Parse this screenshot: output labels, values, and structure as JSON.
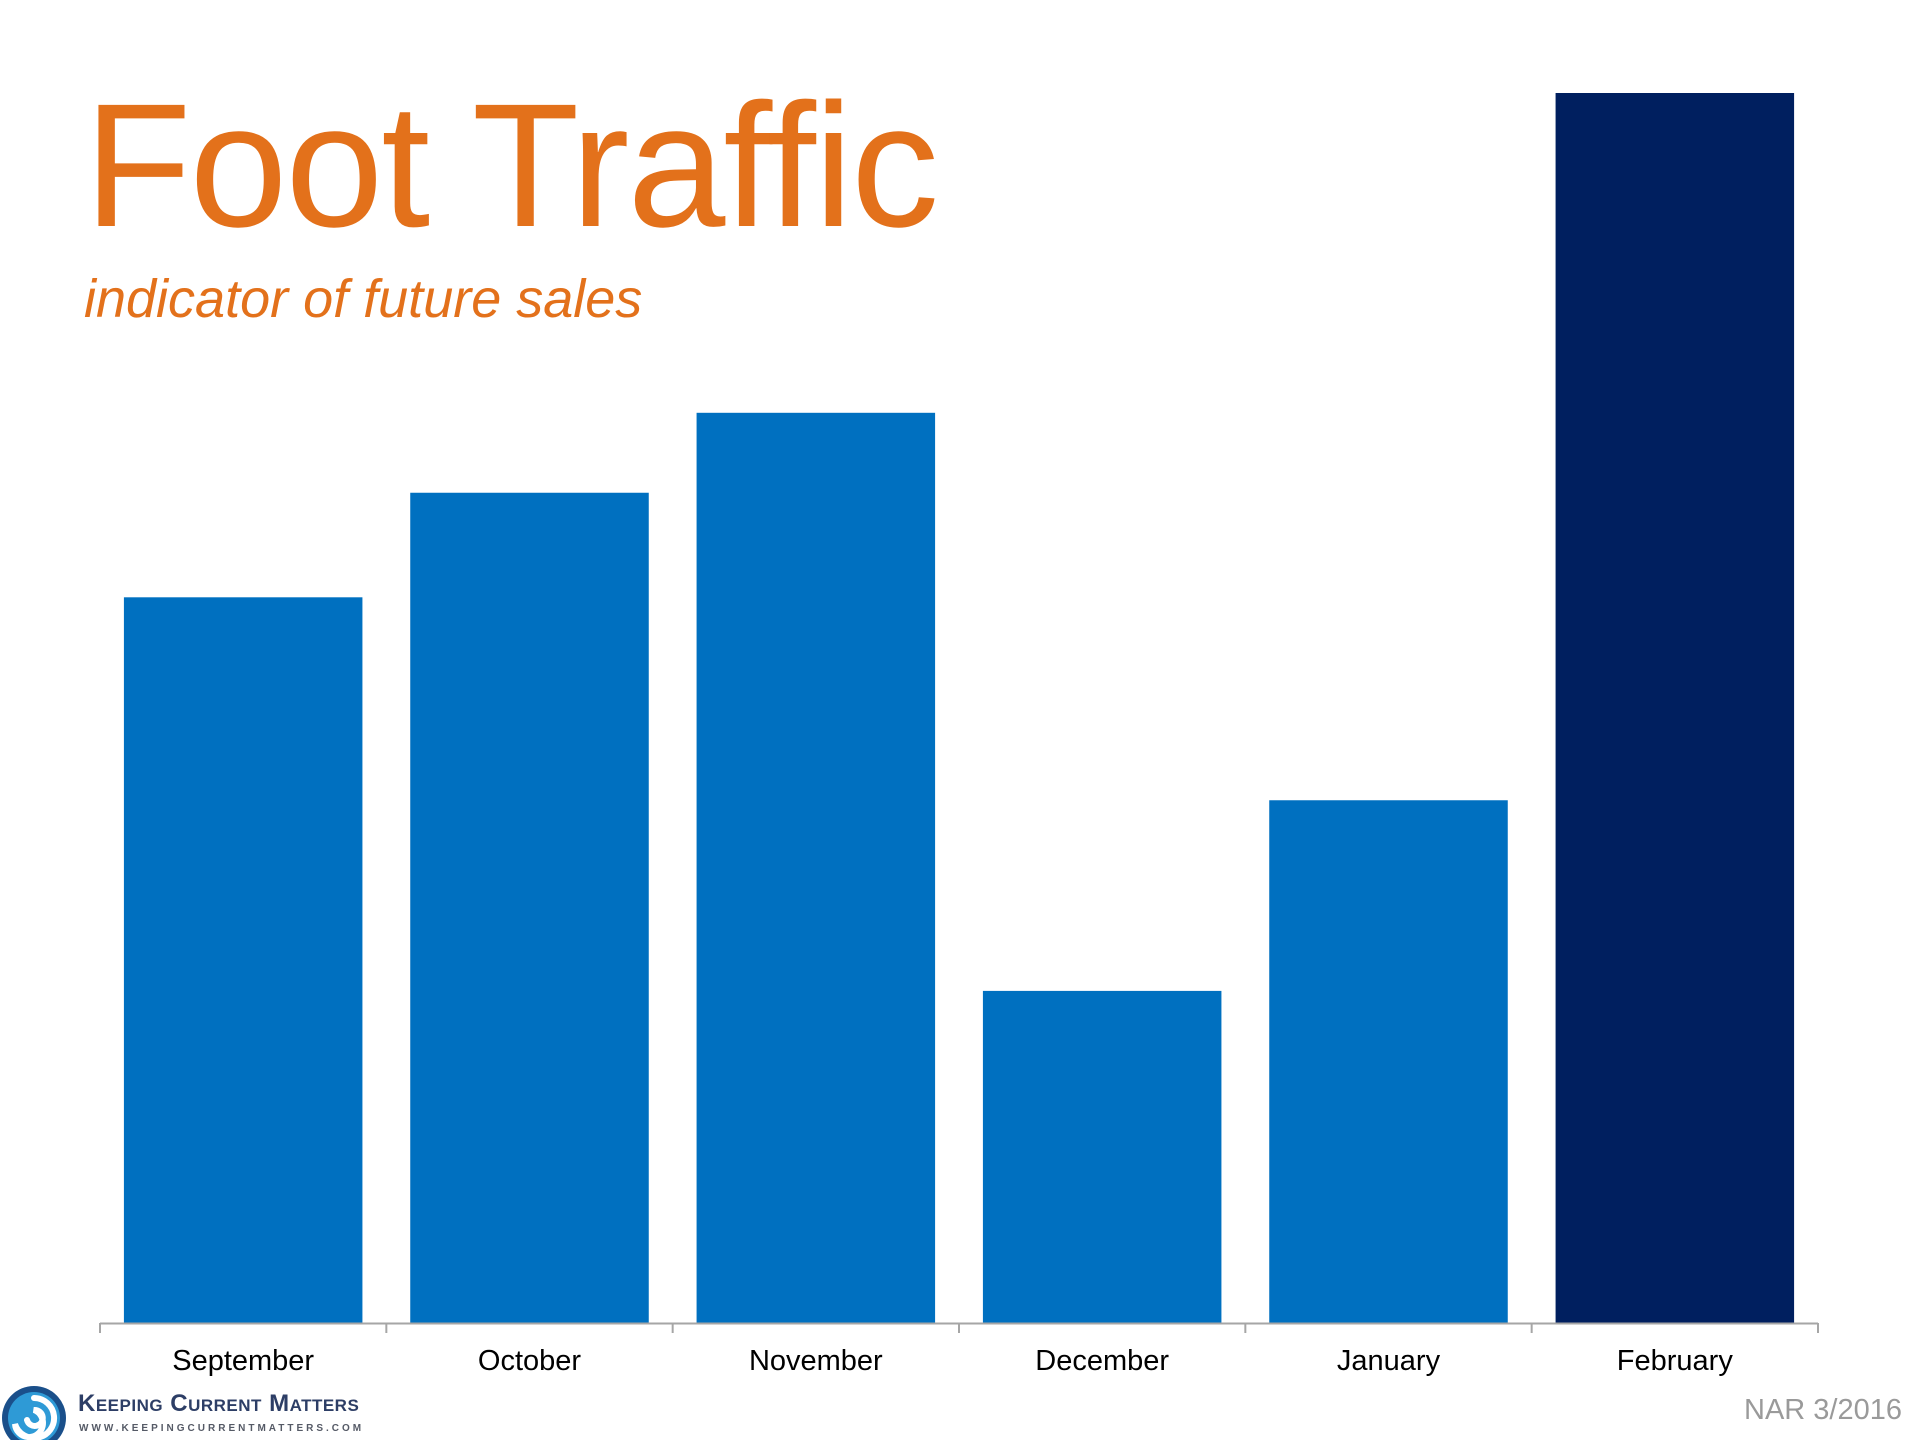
{
  "chart_data": {
    "type": "bar",
    "title": "Foot Traffic",
    "subtitle": "indicator of future sales",
    "categories": [
      "September",
      "October",
      "November",
      "December",
      "January",
      "February"
    ],
    "values": [
      59,
      67.5,
      74,
      27,
      42.5,
      100
    ],
    "bar_colors": [
      "#0070c0",
      "#0070c0",
      "#0070c0",
      "#0070c0",
      "#0070c0",
      "#001f5f"
    ],
    "ylim": [
      0,
      100
    ],
    "grid": false,
    "legend": "none",
    "xlabel": "",
    "ylabel": ""
  },
  "footer": {
    "logo_name": "Keeping Current Matters",
    "logo_url": "WWW.KEEPINGCURRENTMATTERS.COM",
    "logo_icon": "swirl-icon",
    "source": "NAR 3/2016"
  },
  "colors": {
    "title": "#e3711b",
    "axis": "#a6a6a6"
  }
}
